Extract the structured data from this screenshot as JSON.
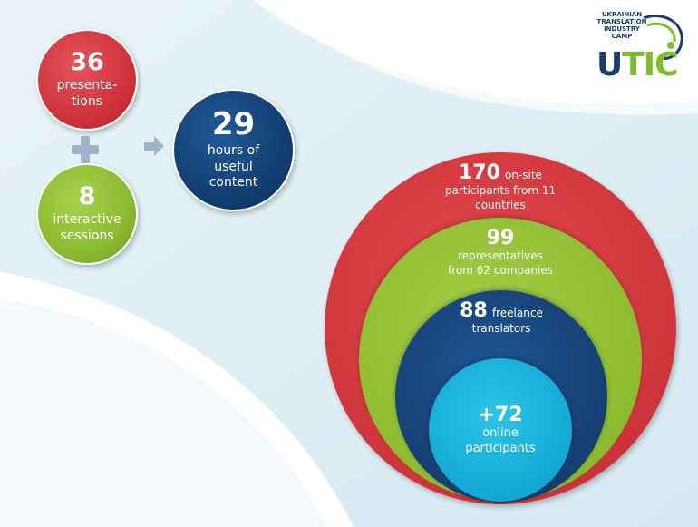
{
  "left_cluster": {
    "presentations": {
      "number": "36",
      "label_line1": "presenta-",
      "label_line2": "tions"
    },
    "interactive": {
      "number": "8",
      "label_line1": "interactive",
      "label_line2": "sessions"
    },
    "hours": {
      "number": "29",
      "label_line1": "hours of",
      "label_line2": "useful",
      "label_line3": "content"
    }
  },
  "nested": {
    "onsite": {
      "number": "170",
      "label_inline": "on-site",
      "label_line2": "participants from 11",
      "label_line3": "countries"
    },
    "representatives": {
      "number": "99",
      "label_line1": "representatives",
      "label_line2": "from 62 companies"
    },
    "freelance": {
      "number": "88",
      "label_inline": "freelance",
      "label_line2": "translators"
    },
    "online": {
      "number": "+72",
      "label_line1": "online",
      "label_line2": "participants"
    }
  },
  "logo": {
    "tagline1": "UKRAINIAN",
    "tagline2": "TRANSLATION",
    "tagline3": "INDUSTRY",
    "tagline4": "CAMP",
    "wordmark_u": "U",
    "wordmark_rest": "TIC"
  },
  "colors": {
    "red": "#d0343b",
    "green": "#8dbb30",
    "navy": "#163f72",
    "cyan": "#13a9d4",
    "connector": "#9fb4c9"
  },
  "icons": {
    "plus": "plus-icon",
    "arrow": "arrow-right-icon"
  }
}
